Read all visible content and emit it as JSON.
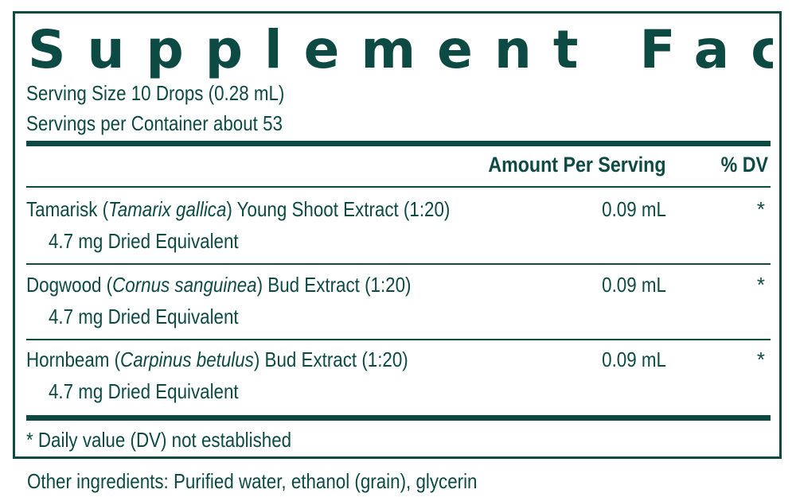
{
  "label": {
    "title": "Supplement Facts",
    "serving_size": "Serving Size 10 Drops (0.28 mL)",
    "servings_per_container": "Servings per Container about 53",
    "columns": {
      "amount": "Amount Per Serving",
      "dv": "% DV"
    },
    "ingredients": [
      {
        "name": "Tamarisk (",
        "latin": "Tamarix gallica",
        "rest": ") Young Shoot Extract (1:20)",
        "sub": "4.7 mg Dried Equivalent",
        "amount": "0.09 mL",
        "dv": "*"
      },
      {
        "name": "Dogwood (",
        "latin": "Cornus sanguinea",
        "rest": ") Bud Extract (1:20)",
        "sub": "4.7 mg Dried Equivalent",
        "amount": "0.09 mL",
        "dv": "*"
      },
      {
        "name": "Hornbeam (",
        "latin": "Carpinus betulus",
        "rest": ") Bud Extract (1:20)",
        "sub": "4.7 mg Dried Equivalent",
        "amount": "0.09 mL",
        "dv": "*"
      }
    ],
    "footnote": "* Daily value (DV) not established"
  },
  "other_ingredients": "Other ingredients: Purified water, ethanol (grain), glycerin",
  "colors": {
    "ink": "#0d4a43",
    "background": "#ffffff"
  }
}
